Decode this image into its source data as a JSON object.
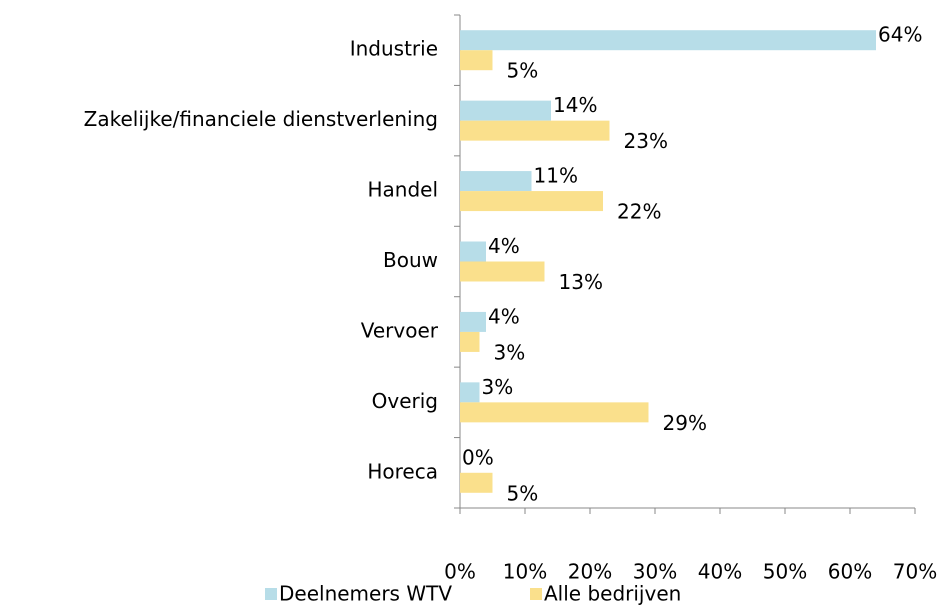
{
  "chart_data": {
    "type": "hbar",
    "categories": [
      "Industrie",
      "Zakelijke/financiele dienstverlening",
      "Handel",
      "Bouw",
      "Vervoer",
      "Overig",
      "Horeca"
    ],
    "series": [
      {
        "name": "Deelnemers WTV",
        "color": "#b7dde8",
        "values": [
          64,
          14,
          11,
          4,
          4,
          3,
          0
        ],
        "value_labels": [
          "64%",
          "14%",
          "11%",
          "4%",
          "4%",
          "3%",
          "0%"
        ]
      },
      {
        "name": "Alle bedrijven",
        "color": "#fae08c",
        "values": [
          5,
          23,
          22,
          13,
          3,
          29,
          5
        ],
        "value_labels": [
          "5%",
          "23%",
          "22%",
          "13%",
          "3%",
          "29%",
          "5%"
        ]
      }
    ],
    "xlim": [
      0,
      70
    ],
    "xticks": [
      {
        "value": 0,
        "label": "0%"
      },
      {
        "value": 10,
        "label": "10%"
      },
      {
        "value": 20,
        "label": "20%"
      },
      {
        "value": 30,
        "label": "30%"
      },
      {
        "value": 40,
        "label": "40%"
      },
      {
        "value": 50,
        "label": "50%"
      },
      {
        "value": 60,
        "label": "60%"
      },
      {
        "value": 70,
        "label": "70%"
      }
    ],
    "legend": "bottom"
  }
}
